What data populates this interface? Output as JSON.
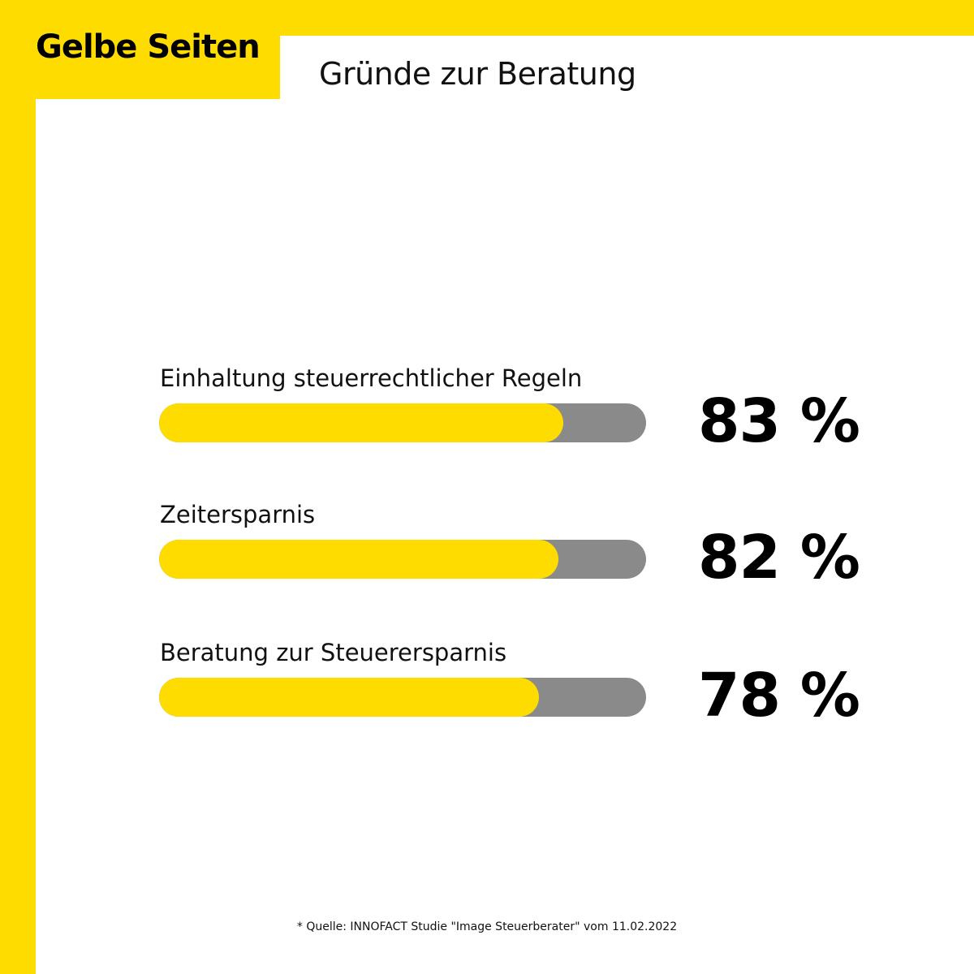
{
  "colors": {
    "brand_yellow": "#FFDC00",
    "track_grey": "#8A8A8A",
    "text": "#000000"
  },
  "brand": {
    "logo_text": "Gelbe Seiten"
  },
  "header": {
    "title": "Gründe zur Beratung"
  },
  "chart_data": {
    "type": "bar",
    "orientation": "horizontal",
    "title": "Gründe zur Beratung",
    "categories": [
      "Einhaltung steuerrechtlicher Regeln",
      "Zeitersparnis",
      "Beratung zur Steuerersparnis"
    ],
    "values": [
      83,
      82,
      78
    ],
    "value_labels": [
      "83 %",
      "82 %",
      "78 %"
    ],
    "unit": "%",
    "xlim": [
      0,
      100
    ],
    "grid": false,
    "legend": "none"
  },
  "footer": {
    "source": "* Quelle: INNOFACT Studie \"Image Steuerberater\" vom 11.02.2022"
  }
}
